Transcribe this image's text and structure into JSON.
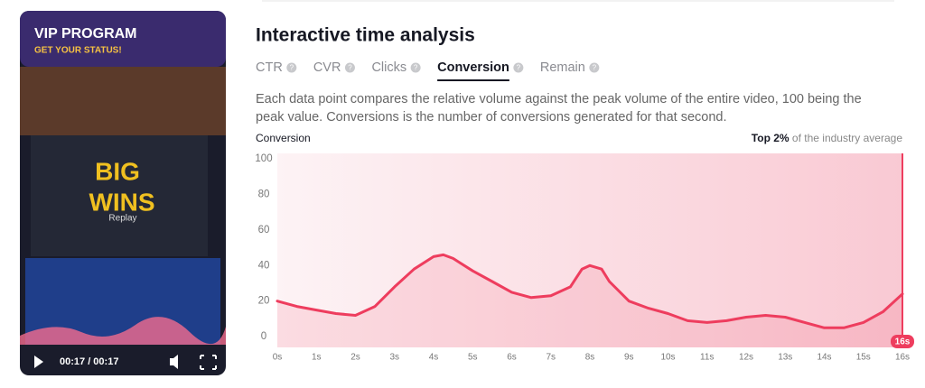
{
  "video": {
    "title": "VIP PROGRAM",
    "subtitle": "GET YOUR STATUS!",
    "big": "BIG",
    "wins": "WINS",
    "replay": "Replay",
    "time": "00:17 / 00:17"
  },
  "header": {
    "title": "Interactive time analysis"
  },
  "tabs": [
    {
      "label": "CTR",
      "active": false
    },
    {
      "label": "CVR",
      "active": false
    },
    {
      "label": "Clicks",
      "active": false
    },
    {
      "label": "Conversion",
      "active": true
    },
    {
      "label": "Remain",
      "active": false
    }
  ],
  "description": [
    "Each data point compares the relative volume against the peak volume of the entire video, 100 being the",
    "peak value. Conversions is the number of conversions generated for that second."
  ],
  "chart_data": {
    "type": "line",
    "y_label": "Conversion",
    "benchmark_strong": "Top 2%",
    "benchmark_rest": "of the industry average",
    "color": "#ee3d5e",
    "x": [
      0,
      0.5,
      1,
      1.5,
      2,
      2.5,
      3,
      3.5,
      4,
      4.25,
      4.5,
      5,
      5.5,
      6,
      6.5,
      7,
      7.5,
      7.8,
      8,
      8.3,
      8.5,
      9,
      9.5,
      10,
      10.5,
      11,
      11.5,
      12,
      12.5,
      13,
      13.5,
      14,
      14.5,
      15,
      15.5,
      16
    ],
    "values": [
      20,
      17,
      15,
      13,
      12,
      17,
      28,
      38,
      45,
      46,
      44,
      37,
      31,
      25,
      22,
      23,
      28,
      38,
      40,
      38,
      31,
      20,
      16,
      13,
      9,
      8,
      9,
      11,
      12,
      11,
      8,
      5,
      5,
      8,
      14,
      24
    ],
    "xlim": [
      0,
      16
    ],
    "ylim": [
      -6,
      103
    ],
    "xticks": [
      {
        "value": 0,
        "label": "0s"
      },
      {
        "value": 1,
        "label": "1s"
      },
      {
        "value": 2,
        "label": "2s"
      },
      {
        "value": 3,
        "label": "3s"
      },
      {
        "value": 4,
        "label": "4s"
      },
      {
        "value": 5,
        "label": "5s"
      },
      {
        "value": 6,
        "label": "6s"
      },
      {
        "value": 7,
        "label": "7s"
      },
      {
        "value": 8,
        "label": "8s"
      },
      {
        "value": 9,
        "label": "9s"
      },
      {
        "value": 10,
        "label": "10s"
      },
      {
        "value": 11,
        "label": "11s"
      },
      {
        "value": 12,
        "label": "12s"
      },
      {
        "value": 13,
        "label": "13s"
      },
      {
        "value": 14,
        "label": "14s"
      },
      {
        "value": 15,
        "label": "15s"
      },
      {
        "value": 16,
        "label": "16s"
      }
    ],
    "yticks": [
      0,
      20,
      40,
      60,
      80,
      100
    ],
    "playhead": {
      "value": 16,
      "label": "16s"
    }
  }
}
